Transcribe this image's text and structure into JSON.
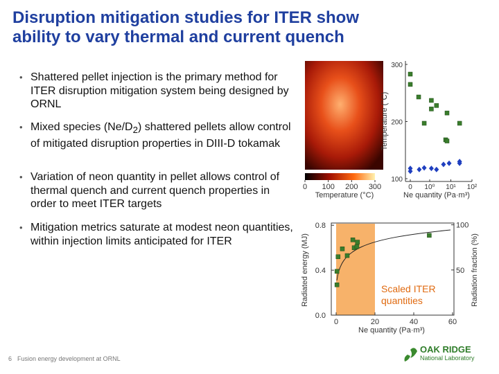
{
  "title": [
    "Disruption mitigation studies for ITER show",
    "ability to vary thermal and current quench"
  ],
  "bullets": [
    {
      "text": "Shattered pellet injection is the primary method for ITER disruption mitigation system being designed by ORNL"
    },
    {
      "text": "Mixed species (Ne/D",
      "sub": "2",
      "tail": ") shattered pellets allow control of mitigated disruption properties in DIII-D tokamak"
    },
    {
      "text": "Variation of neon quantity in pellet allows control of thermal quench and current quench properties in order to meet ITER targets"
    },
    {
      "text": "Mitigation metrics saturate at modest neon quantities, within injection limits anticipated for ITER"
    }
  ],
  "figure_top": {
    "colorbar": {
      "label": "Temperature (°C)",
      "lim": [
        0,
        300
      ],
      "ticks": [
        0,
        100,
        200,
        300
      ]
    },
    "chart": {
      "type": "scatter",
      "ylabel": "Temperature (°C)",
      "xlabel": "Ne quantity (Pa·m³)",
      "log_x": true,
      "xlim": [
        0,
        100
      ],
      "xticks": [
        0,
        {
          "value": 1,
          "label": "10⁰"
        },
        {
          "value": 10,
          "label": "10¹"
        },
        {
          "value": 100,
          "label": "10²"
        }
      ],
      "ylim": [
        100,
        300
      ],
      "yticks": [
        100,
        200,
        300
      ],
      "series": [
        {
          "color": "#3a7d2c",
          "marker": "square",
          "x": [
            0,
            0,
            0.3,
            1.2,
            1.2,
            2.1,
            6.6,
            0.55,
            5.7,
            6.6,
            26
          ],
          "values": [
            283,
            265,
            243,
            237,
            222,
            228,
            215,
            197,
            168,
            166,
            197
          ]
        },
        {
          "color": "#1f3fbf",
          "marker": "diamond",
          "x": [
            0,
            0,
            0.32,
            0.55,
            1.2,
            2.1,
            4.5,
            8.3,
            26,
            26
          ],
          "values": [
            118,
            113,
            116,
            119,
            118,
            116,
            125,
            127,
            130,
            127
          ]
        }
      ]
    }
  },
  "figure_bottom": {
    "type": "scatter",
    "ylabel": "Radiated energy (MJ)",
    "y2label": "Radiation fraction (%)",
    "xlabel": "Ne quantity (Pa·m³)",
    "xlim": [
      -2.5,
      60
    ],
    "xticks": [
      0,
      20,
      40,
      60
    ],
    "ylim": [
      0,
      0.82
    ],
    "yticks": [
      {
        "value": 0,
        "label": "0.0"
      },
      0.4,
      0.8
    ],
    "y2lim": [
      0,
      102
    ],
    "y2ticks": [
      50,
      100
    ],
    "highlight": {
      "range": [
        0,
        20
      ],
      "color": "#f7b26a",
      "label": [
        "Scaled ITER",
        "quantities"
      ]
    },
    "series": [
      {
        "color": "#3a7d2c",
        "marker": "square",
        "x": [
          0.4,
          0.4,
          1,
          3.2,
          5.7,
          8.6,
          9.3,
          10.7,
          11,
          48
        ],
        "values": [
          0.27,
          0.39,
          0.52,
          0.59,
          0.53,
          0.67,
          0.6,
          0.61,
          0.65,
          0.71
        ]
      }
    ]
  },
  "footer": {
    "page": "6",
    "text": "Fusion energy development at ORNL"
  },
  "logo": {
    "name": "OAK RIDGE",
    "sub": "National Laboratory"
  }
}
